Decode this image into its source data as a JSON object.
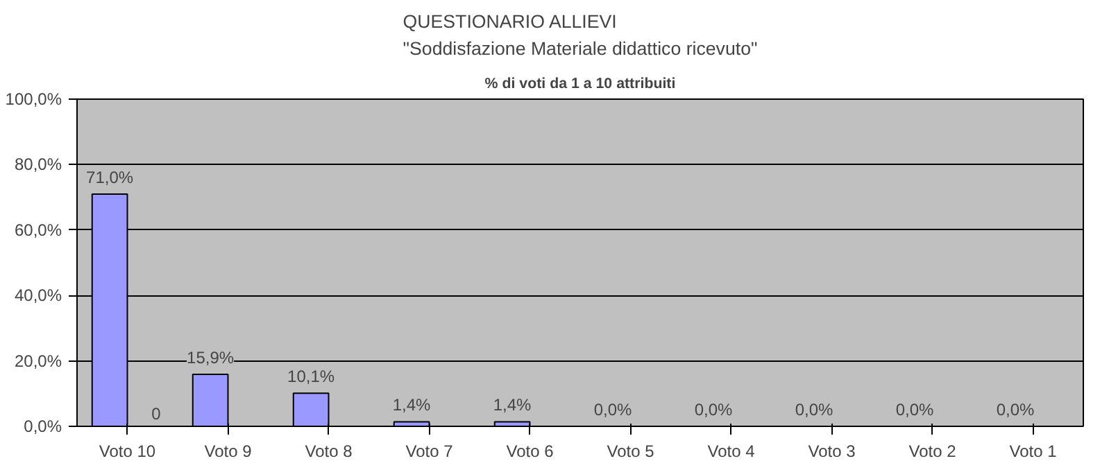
{
  "chart_data": {
    "type": "bar",
    "title": "QUESTIONARIO ALLIEVI\n\"Soddisfazione Materiale didattico ricevuto\"",
    "subtitle": "% di voti da 1 a 10 attribuiti",
    "categories": [
      "Voto 10",
      "Voto 9",
      "Voto 8",
      "Voto 7",
      "Voto 6",
      "Voto 5",
      "Voto 4",
      "Voto 3",
      "Voto 2",
      "Voto 1"
    ],
    "series": [
      {
        "color": "#9999ff",
        "values": [
          71.0,
          15.9,
          10.1,
          1.4,
          1.4,
          0.0,
          0.0,
          0.0,
          0.0,
          0.0
        ],
        "value_labels": [
          "71,0%",
          "15,9%",
          "10,1%",
          "1,4%",
          "1,4%",
          "0,0%",
          "0,0%",
          "0,0%",
          "0,0%",
          "0,0%"
        ]
      },
      {
        "color": "#993366",
        "values": [
          0,
          null,
          null,
          null,
          null,
          null,
          null,
          null,
          null,
          null
        ],
        "value_labels": [
          "0",
          null,
          null,
          null,
          null,
          null,
          null,
          null,
          null,
          null
        ]
      }
    ],
    "ylim": [
      0,
      100
    ],
    "yticks": [
      {
        "value": 0,
        "label": "0,0%"
      },
      {
        "value": 20,
        "label": "20,0%"
      },
      {
        "value": 40,
        "label": "40,0%"
      },
      {
        "value": 60,
        "label": "60,0%"
      },
      {
        "value": 80,
        "label": "80,0%"
      },
      {
        "value": 100,
        "label": "100,0%"
      }
    ],
    "grid": "y"
  }
}
